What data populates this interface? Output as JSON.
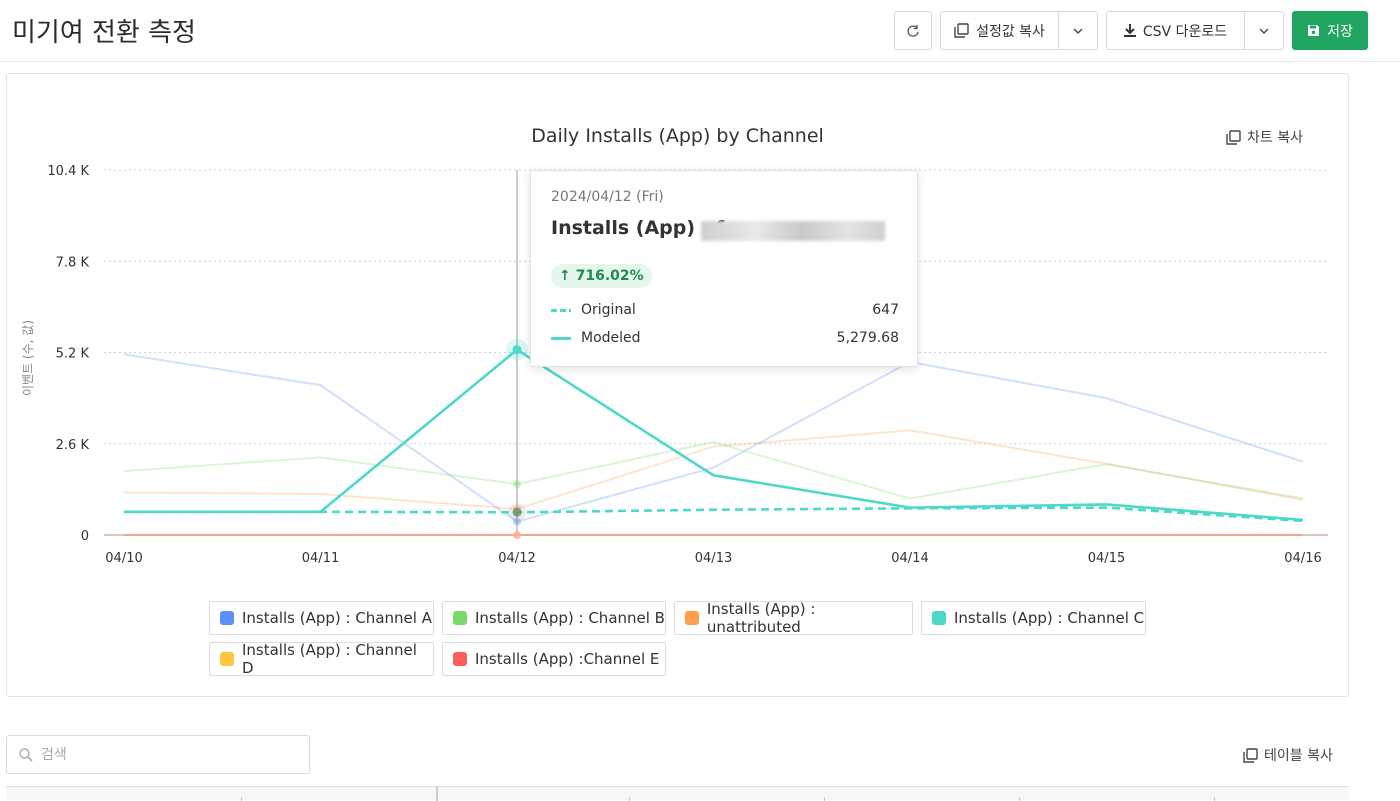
{
  "header": {
    "title": "미기여 전환 측정",
    "copy_settings_label": "설정값 복사",
    "csv_label": "CSV 다운로드",
    "save_label": "저장"
  },
  "chart": {
    "copy_label": "차트 복사"
  },
  "chart_data": {
    "type": "line",
    "title": "Daily Installs (App) by Channel",
    "xlabel": "",
    "ylabel": "이벤트 (수, 값)",
    "categories": [
      "04/10",
      "04/11",
      "04/12",
      "04/13",
      "04/14",
      "04/15",
      "04/16"
    ],
    "ylim": [
      0,
      10400
    ],
    "yticks": [
      0,
      2600,
      5200,
      7800,
      10400
    ],
    "ytick_labels": [
      "0",
      "2.6 K",
      "5.2 K",
      "7.8 K",
      "10.4 K"
    ],
    "grid": "horizontal-dotted",
    "series": [
      {
        "name": "Installs (App) : Channel A",
        "color": "#5b8ff9",
        "dim": true,
        "values": [
          5150,
          4270,
          380,
          1920,
          4930,
          3900,
          2090
        ]
      },
      {
        "name": "Installs (App) : Channel B",
        "color": "#7dd86c",
        "dim": true,
        "values": [
          1820,
          2210,
          1450,
          2650,
          1040,
          2020,
          1040
        ]
      },
      {
        "name": "Installs (App) : unattributed",
        "color": "#ff9d4d",
        "dim": true,
        "values": [
          1210,
          1170,
          740,
          2520,
          2980,
          2030,
          1000
        ]
      },
      {
        "name": "Installs (App) : Channel C",
        "color": "#4dd9c8",
        "dim": false,
        "style": "solid",
        "values": [
          660,
          660,
          5280,
          1700,
          780,
          870,
          430
        ]
      },
      {
        "name": "Installs (App) : Channel C Original",
        "color": "#4dd9c8",
        "dim": false,
        "style": "dashed",
        "values": [
          660,
          660,
          647,
          720,
          760,
          780,
          400
        ]
      },
      {
        "name": "Installs (App) : Channel D",
        "color": "#ffc53d",
        "dim": true,
        "values": [
          0,
          0,
          0,
          0,
          0,
          0,
          0
        ]
      },
      {
        "name": "Installs (App) :Channel E",
        "color": "#ff5c5c",
        "dim": true,
        "values": [
          0,
          0,
          0,
          0,
          0,
          0,
          0
        ]
      }
    ],
    "hover_index": 2
  },
  "tooltip": {
    "date": "2024/04/12 (Fri)",
    "title": "Installs (App) : f",
    "change": "↑ 716.02%",
    "rows": [
      {
        "label": "Original",
        "value": "647",
        "style": "dashed"
      },
      {
        "label": "Modeled",
        "value": "5,279.68",
        "style": "solid"
      }
    ]
  },
  "legend": [
    {
      "label": "Installs (App) : Channel A",
      "color": "#5b8ff9"
    },
    {
      "label": "Installs (App) : Channel B",
      "color": "#7dd86c"
    },
    {
      "label": "Installs (App) : unattributed",
      "color": "#ff9d4d"
    },
    {
      "label": "Installs (App) : Channel C",
      "color": "#4dd9c8"
    },
    {
      "label": "Installs (App) : Channel D",
      "color": "#ffc53d"
    },
    {
      "label": "Installs (App) :Channel E",
      "color": "#ff5c5c"
    }
  ],
  "search": {
    "placeholder": "검색"
  },
  "table": {
    "copy_label": "테이블 복사"
  }
}
